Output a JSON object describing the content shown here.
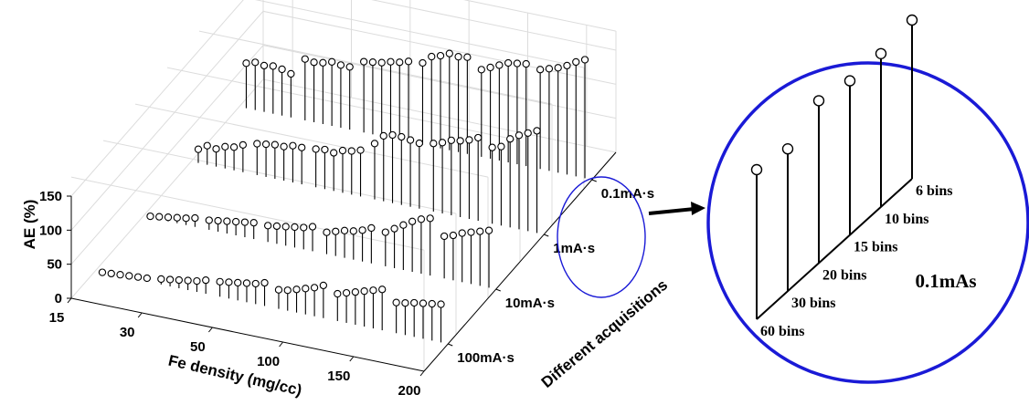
{
  "chart_data": [
    {
      "type": "3d-stem",
      "zlabel": "AE (%)",
      "xlabel": "Fe density (mg/cc)",
      "ylabel": "Different acquisitions",
      "x_ticks": [
        "15",
        "30",
        "50",
        "100",
        "150",
        "200"
      ],
      "z_ticks": [
        "0",
        "50",
        "100",
        "150"
      ],
      "zlim": [
        0,
        150
      ],
      "acquisitions": [
        "100mA·s",
        "10mA·s",
        "1mA·s",
        "0.1mA·s"
      ],
      "bins_per_group": [
        "60 bins",
        "30 bins",
        "20 bins",
        "15 bins",
        "10 bins",
        "6 bins"
      ],
      "series": [
        {
          "name": "100mA·s",
          "values": [
            [
              0,
              1,
              2,
              3,
              4,
              5
            ],
            [
              8,
              10,
              12,
              14,
              16,
              20
            ],
            [
              22,
              24,
              26,
              28,
              30,
              34
            ],
            [
              28,
              30,
              34,
              38,
              42,
              48
            ],
            [
              40,
              44,
              48,
              52,
              56,
              60
            ],
            [
              45,
              47,
              50,
              52,
              54,
              56
            ]
          ]
        },
        {
          "name": "10mA·s",
          "values": [
            [
              2,
              4,
              6,
              8,
              10,
              13
            ],
            [
              14,
              16,
              18,
              20,
              22,
              24
            ],
            [
              24,
              26,
              28,
              30,
              32,
              36
            ],
            [
              32,
              36,
              40,
              42,
              46,
              52
            ],
            [
              50,
              58,
              66,
              74,
              80,
              84
            ],
            [
              62,
              66,
              72,
              76,
              80,
              84
            ]
          ]
        },
        {
          "name": "1mA·s",
          "values": [
            [
              20,
              28,
              26,
              32,
              34,
              40
            ],
            [
              46,
              48,
              50,
              50,
              54,
              54
            ],
            [
              56,
              58,
              56,
              62,
              64,
              68
            ],
            [
              82,
              96,
              100,
              100,
              98,
              96
            ],
            [
              100,
              104,
              110,
              112,
              116,
              122
            ],
            [
              112,
              116,
              130,
              138,
              144,
              150
            ]
          ]
        },
        {
          "name": "0.1mA·s",
          "values": [
            [
              66,
              70,
              68,
              70,
              68,
              64
            ],
            [
              90,
              88,
              90,
              94,
              92,
              92
            ],
            [
              104,
              106,
              108,
              112,
              114,
              118
            ],
            [
              120,
              132,
              136,
              142,
              140,
              142
            ],
            [
              128,
              134,
              140,
              146,
              148,
              150
            ],
            [
              146,
              150,
              154,
              160,
              168,
              174
            ]
          ]
        }
      ]
    },
    {
      "type": "stem",
      "title": "0.1mAs",
      "categories": [
        "60 bins",
        "30 bins",
        "20 bins",
        "15 bins",
        "10 bins",
        "6 bins"
      ]
    }
  ]
}
